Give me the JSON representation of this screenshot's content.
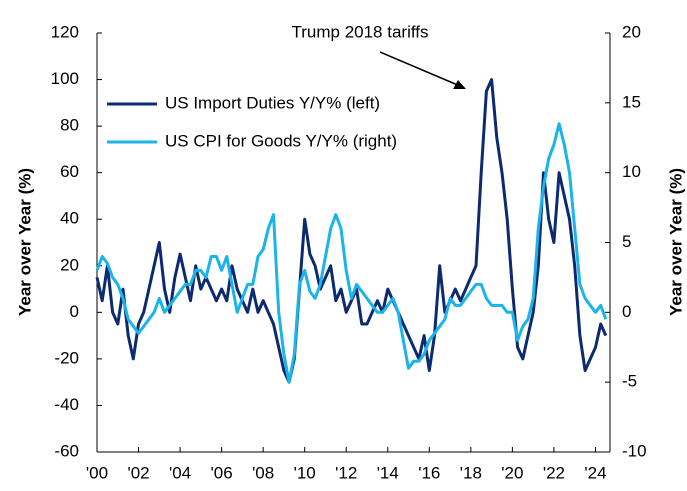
{
  "chart_data": {
    "type": "line",
    "annotation": "Trump 2018 tariffs",
    "y_label": "Year over Year (%)",
    "y2_label": "Year over Year (%)",
    "legend": "upper left",
    "x": [
      2000,
      2000.25,
      2000.5,
      2000.75,
      2001,
      2001.25,
      2001.5,
      2001.75,
      2002,
      2002.25,
      2002.5,
      2002.75,
      2003,
      2003.25,
      2003.5,
      2003.75,
      2004,
      2004.25,
      2004.5,
      2004.75,
      2005,
      2005.25,
      2005.5,
      2005.75,
      2006,
      2006.25,
      2006.5,
      2006.75,
      2007,
      2007.25,
      2007.5,
      2007.75,
      2008,
      2008.25,
      2008.5,
      2008.75,
      2009,
      2009.25,
      2009.5,
      2009.75,
      2010,
      2010.25,
      2010.5,
      2010.75,
      2011,
      2011.25,
      2011.5,
      2011.75,
      2012,
      2012.25,
      2012.5,
      2012.75,
      2013,
      2013.25,
      2013.5,
      2013.75,
      2014,
      2014.25,
      2014.5,
      2014.75,
      2015,
      2015.25,
      2015.5,
      2015.75,
      2016,
      2016.25,
      2016.5,
      2016.75,
      2017,
      2017.25,
      2017.5,
      2017.75,
      2018,
      2018.25,
      2018.5,
      2018.75,
      2019,
      2019.25,
      2019.5,
      2019.75,
      2020,
      2020.25,
      2020.5,
      2020.75,
      2021,
      2021.25,
      2021.5,
      2021.75,
      2022,
      2022.25,
      2022.5,
      2022.75,
      2023,
      2023.25,
      2023.5,
      2023.75,
      2024,
      2024.25,
      2024.5
    ],
    "series": [
      {
        "name": "US Import Duties Y/Y% (left)",
        "color": "#0b2a6f",
        "axis": "y",
        "values": [
          15,
          5,
          20,
          0,
          -5,
          10,
          -10,
          -20,
          -5,
          0,
          10,
          20,
          30,
          10,
          0,
          15,
          25,
          15,
          5,
          20,
          10,
          15,
          10,
          5,
          10,
          5,
          20,
          10,
          5,
          0,
          10,
          0,
          5,
          0,
          -5,
          -15,
          -25,
          -30,
          -20,
          10,
          40,
          25,
          20,
          10,
          15,
          20,
          5,
          10,
          0,
          5,
          10,
          -5,
          -5,
          0,
          5,
          0,
          10,
          5,
          0,
          -5,
          -10,
          -15,
          -20,
          -10,
          -25,
          -10,
          20,
          0,
          5,
          10,
          5,
          10,
          15,
          20,
          60,
          95,
          100,
          75,
          60,
          40,
          10,
          -15,
          -20,
          -10,
          0,
          20,
          60,
          40,
          30,
          60,
          50,
          40,
          20,
          -10,
          -25,
          -20,
          -15,
          -5,
          -10
        ]
      },
      {
        "name": "US CPI for Goods Y/Y% (right)",
        "color": "#1ab4ea",
        "axis": "y2",
        "values": [
          3,
          4,
          3.5,
          2.5,
          2,
          1,
          -0.5,
          -1,
          -1.5,
          -1,
          -0.5,
          0,
          1,
          0,
          0.5,
          1,
          1.5,
          2,
          2,
          3,
          3,
          2.5,
          4,
          4,
          3,
          4,
          2,
          0,
          1,
          2,
          2,
          4,
          4.5,
          6,
          7,
          0,
          -3,
          -5,
          -3,
          2,
          3,
          1.5,
          1,
          2,
          4,
          6,
          7,
          6,
          3,
          1,
          2,
          1.5,
          1,
          0.5,
          0,
          0,
          0.5,
          1,
          0,
          -2,
          -4,
          -3.5,
          -3.5,
          -3,
          -2,
          -1.5,
          -1,
          -0.5,
          1,
          0.5,
          0.5,
          1,
          1.5,
          2,
          2,
          1,
          0.5,
          0.5,
          0.5,
          0,
          0,
          -2,
          -1,
          -0.5,
          1,
          6,
          9,
          11,
          12,
          13.5,
          12,
          10,
          6,
          2,
          1,
          0.5,
          0,
          0.5,
          -0.5
        ]
      }
    ],
    "xlim": [
      2000,
      2024.7
    ],
    "xticks": [
      {
        "value": 2000,
        "label": "'00"
      },
      {
        "value": 2002,
        "label": "'02"
      },
      {
        "value": 2004,
        "label": "'04"
      },
      {
        "value": 2006,
        "label": "'06"
      },
      {
        "value": 2008,
        "label": "'08"
      },
      {
        "value": 2010,
        "label": "'10"
      },
      {
        "value": 2012,
        "label": "'12"
      },
      {
        "value": 2014,
        "label": "'14"
      },
      {
        "value": 2016,
        "label": "'16"
      },
      {
        "value": 2018,
        "label": "'18"
      },
      {
        "value": 2020,
        "label": "'20"
      },
      {
        "value": 2022,
        "label": "'22"
      },
      {
        "value": 2024,
        "label": "'24"
      }
    ],
    "ylim": [
      -60,
      120
    ],
    "yticks": [
      -60,
      -40,
      -20,
      0,
      20,
      40,
      60,
      80,
      100,
      120
    ],
    "y2lim": [
      -10,
      20
    ],
    "y2ticks": [
      -10,
      -5,
      0,
      5,
      10,
      15,
      20
    ],
    "grid": false
  }
}
